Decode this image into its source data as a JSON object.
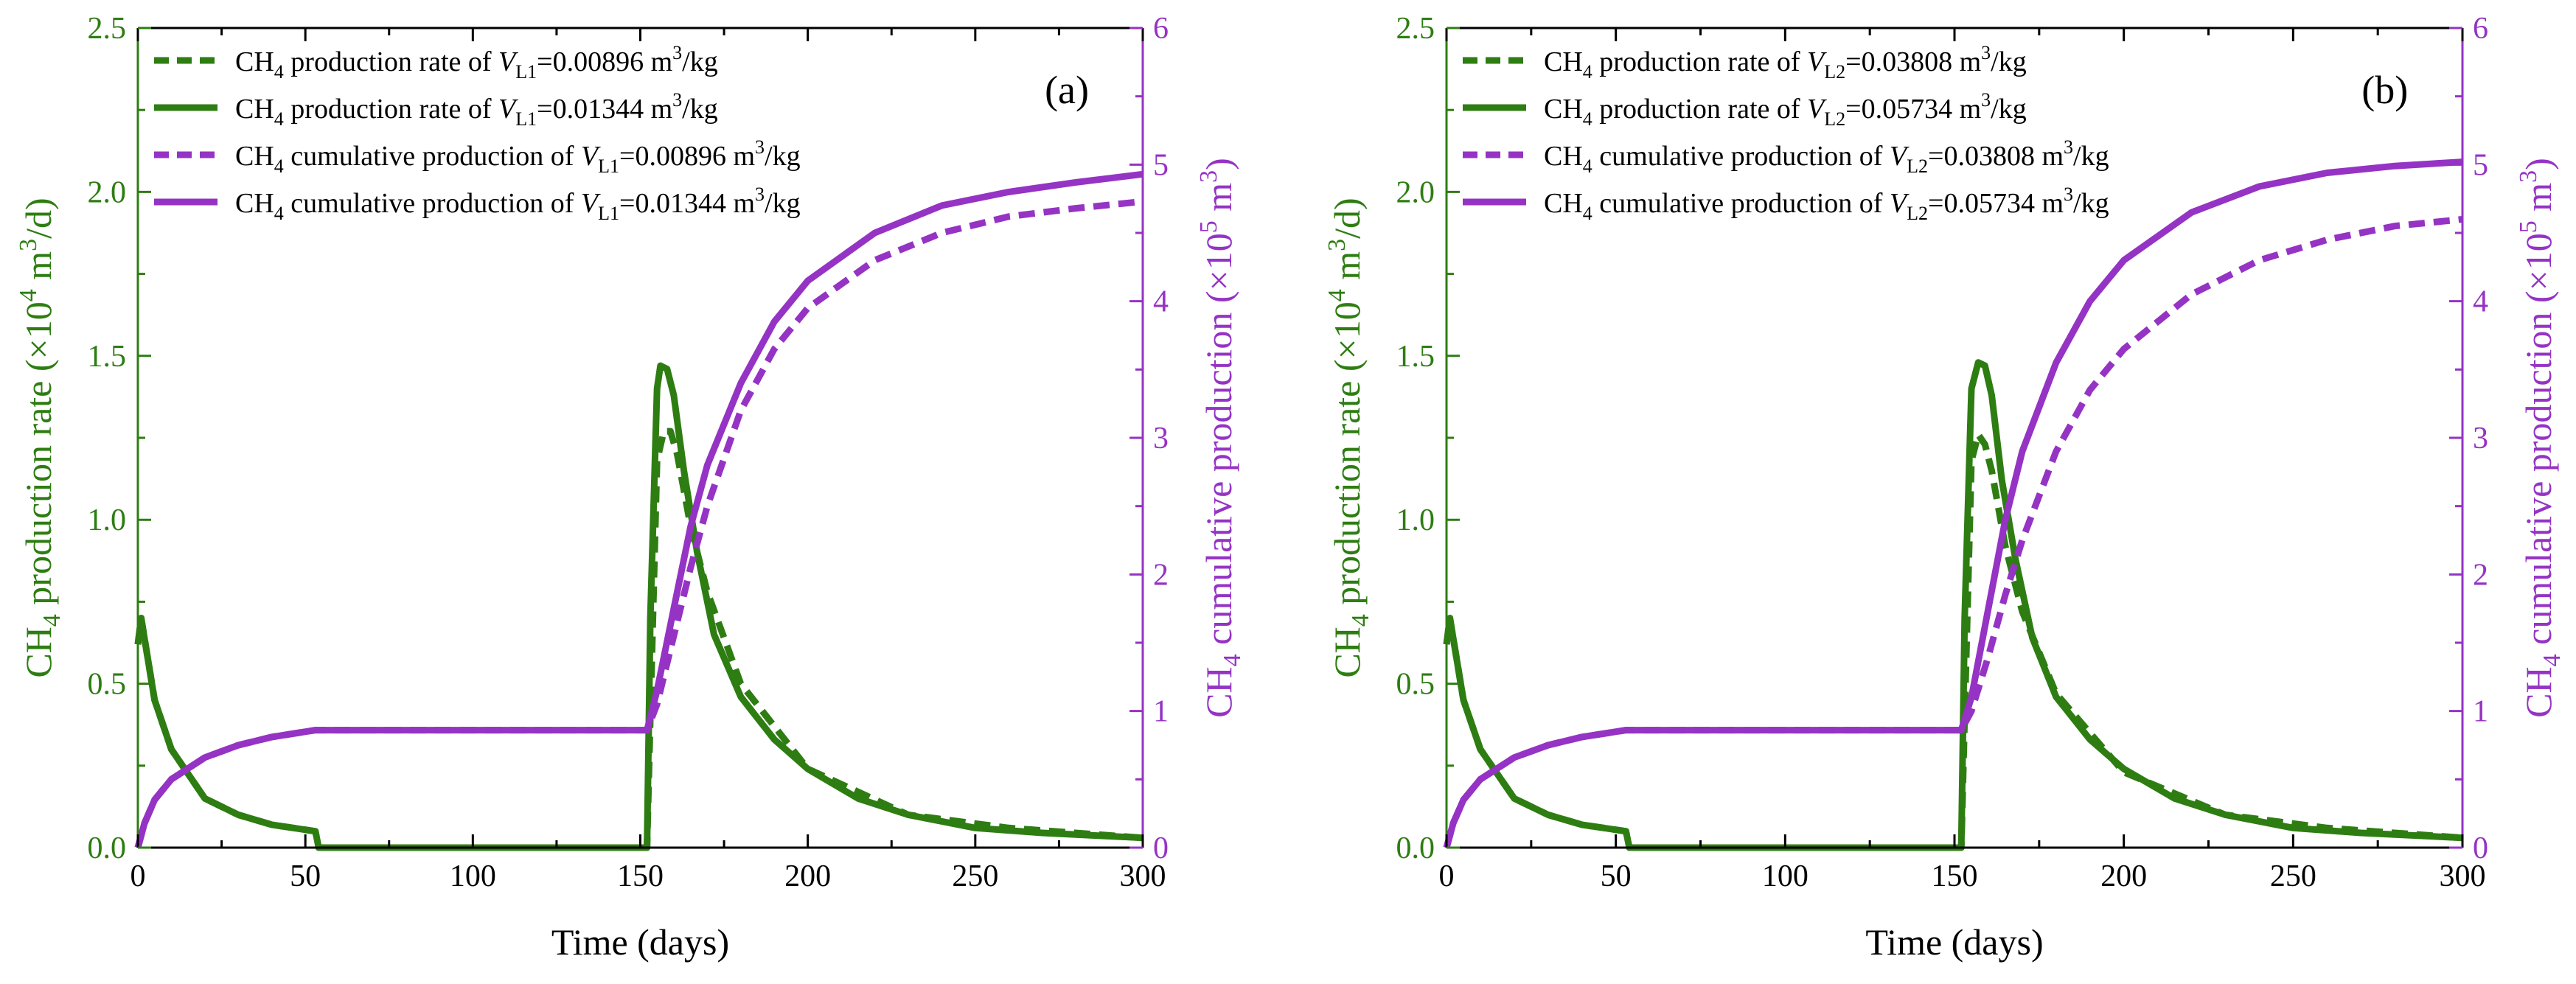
{
  "colors": {
    "rate": "#2e7d12",
    "cum": "#9533c4",
    "axis": "#000000"
  },
  "chart_data": [
    {
      "type": "line",
      "panel_label": "(a)",
      "xlabel": "Time (days)",
      "ylabel_left": {
        "pre": "CH",
        "sub": "4",
        "mid": " production rate (×10",
        "sup": "4",
        "mid2": " m",
        "sup2": "3",
        "post": "/d)"
      },
      "ylabel_right": {
        "pre": "CH",
        "sub": "4",
        "mid": " cumulative production (×10",
        "sup": "5",
        "mid2": " m",
        "sup2": "3",
        "post": ")"
      },
      "xlim": [
        0,
        300
      ],
      "ylim_left": [
        0,
        2.5
      ],
      "ylim_right": [
        0,
        6
      ],
      "xticks": [
        "0",
        "50",
        "100",
        "150",
        "200",
        "250",
        "300"
      ],
      "yticks_left": [
        "0.0",
        "0.5",
        "1.0",
        "1.5",
        "2.0",
        "2.5"
      ],
      "yticks_right": [
        "0",
        "1",
        "2",
        "3",
        "4",
        "5",
        "6"
      ],
      "legend": [
        {
          "pre": "CH",
          "sub": "4",
          "text": " production rate of ",
          "var": "V",
          "varsub": "L1",
          "val": "=0.00896 m",
          "sup": "3",
          "unit": "/kg",
          "style": "dashed",
          "color": "rate"
        },
        {
          "pre": "CH",
          "sub": "4",
          "text": " production rate of ",
          "var": "V",
          "varsub": "L1",
          "val": "=0.01344 m",
          "sup": "3",
          "unit": "/kg",
          "style": "solid",
          "color": "rate"
        },
        {
          "pre": "CH",
          "sub": "4",
          "text": " cumulative production of ",
          "var": "V",
          "varsub": "L1",
          "val": "=0.00896 m",
          "sup": "3",
          "unit": "/kg",
          "style": "dashed",
          "color": "cum"
        },
        {
          "pre": "CH",
          "sub": "4",
          "text": " cumulative production of ",
          "var": "V",
          "varsub": "L1",
          "val": "=0.01344 m",
          "sup": "3",
          "unit": "/kg",
          "style": "solid",
          "color": "cum"
        }
      ],
      "series": [
        {
          "name": "CH4 production rate of VL1=0.00896 m3/kg",
          "axis": "left",
          "style": "dashed",
          "color": "rate",
          "x": [
            0,
            1,
            5,
            10,
            20,
            30,
            40,
            53,
            54,
            55,
            150,
            152,
            153,
            155,
            157,
            159,
            161,
            165,
            170,
            180,
            200,
            230,
            260,
            300
          ],
          "y": [
            0.62,
            0.7,
            0.45,
            0.3,
            0.15,
            0.1,
            0.07,
            0.05,
            0.0,
            0.0,
            0.0,
            0.0,
            0.4,
            1.18,
            1.27,
            1.27,
            1.2,
            0.98,
            0.78,
            0.5,
            0.24,
            0.1,
            0.06,
            0.03
          ]
        },
        {
          "name": "CH4 production rate of VL1=0.01344 m3/kg",
          "axis": "left",
          "style": "solid",
          "color": "rate",
          "x": [
            0,
            1,
            5,
            10,
            20,
            30,
            40,
            53,
            54,
            55,
            150,
            152,
            153,
            155,
            156,
            158,
            160,
            163,
            167,
            172,
            180,
            190,
            200,
            215,
            230,
            250,
            270,
            300
          ],
          "y": [
            0.62,
            0.7,
            0.45,
            0.3,
            0.15,
            0.1,
            0.07,
            0.05,
            0.0,
            0.0,
            0.0,
            0.0,
            0.7,
            1.4,
            1.47,
            1.46,
            1.38,
            1.15,
            0.9,
            0.65,
            0.46,
            0.33,
            0.24,
            0.15,
            0.1,
            0.06,
            0.045,
            0.03
          ]
        },
        {
          "name": "CH4 cumulative production of VL1=0.00896 m3/kg",
          "axis": "right",
          "style": "dashed",
          "color": "cum",
          "x": [
            0,
            2,
            5,
            10,
            20,
            30,
            40,
            53,
            152,
            155,
            160,
            165,
            170,
            180,
            190,
            200,
            220,
            240,
            260,
            280,
            300
          ],
          "y": [
            0,
            0.18,
            0.35,
            0.5,
            0.66,
            0.75,
            0.81,
            0.86,
            0.86,
            1.05,
            1.55,
            2.05,
            2.5,
            3.2,
            3.65,
            3.95,
            4.3,
            4.5,
            4.62,
            4.68,
            4.73
          ]
        },
        {
          "name": "CH4 cumulative production of VL1=0.01344 m3/kg",
          "axis": "right",
          "style": "solid",
          "color": "cum",
          "x": [
            0,
            2,
            5,
            10,
            20,
            30,
            40,
            53,
            152,
            155,
            160,
            165,
            170,
            180,
            190,
            200,
            220,
            240,
            260,
            280,
            300
          ],
          "y": [
            0,
            0.18,
            0.35,
            0.5,
            0.66,
            0.75,
            0.81,
            0.86,
            0.86,
            1.15,
            1.75,
            2.35,
            2.8,
            3.4,
            3.85,
            4.15,
            4.5,
            4.7,
            4.8,
            4.87,
            4.93
          ]
        }
      ]
    },
    {
      "type": "line",
      "panel_label": "(b)",
      "xlabel": "Time (days)",
      "ylabel_left": {
        "pre": "CH",
        "sub": "4",
        "mid": " production rate (×10",
        "sup": "4",
        "mid2": " m",
        "sup2": "3",
        "post": "/d)"
      },
      "ylabel_right": {
        "pre": "CH",
        "sub": "4",
        "mid": " cumulative production (×10",
        "sup": "5",
        "mid2": " m",
        "sup2": "3",
        "post": ")"
      },
      "xlim": [
        0,
        300
      ],
      "ylim_left": [
        0,
        2.5
      ],
      "ylim_right": [
        0,
        6
      ],
      "xticks": [
        "0",
        "50",
        "100",
        "150",
        "200",
        "250",
        "300"
      ],
      "yticks_left": [
        "0.0",
        "0.5",
        "1.0",
        "1.5",
        "2.0",
        "2.5"
      ],
      "yticks_right": [
        "0",
        "1",
        "2",
        "3",
        "4",
        "5",
        "6"
      ],
      "legend": [
        {
          "pre": "CH",
          "sub": "4",
          "text": " production rate of ",
          "var": "V",
          "varsub": "L2",
          "val": "=0.03808 m",
          "sup": "3",
          "unit": "/kg",
          "style": "dashed",
          "color": "rate"
        },
        {
          "pre": "CH",
          "sub": "4",
          "text": " production rate of ",
          "var": "V",
          "varsub": "L2",
          "val": "=0.05734 m",
          "sup": "3",
          "unit": "/kg",
          "style": "solid",
          "color": "rate"
        },
        {
          "pre": "CH",
          "sub": "4",
          "text": " cumulative production of ",
          "var": "V",
          "varsub": "L2",
          "val": "=0.03808 m",
          "sup": "3",
          "unit": "/kg",
          "style": "dashed",
          "color": "cum"
        },
        {
          "pre": "CH",
          "sub": "4",
          "text": " cumulative production of ",
          "var": "V",
          "varsub": "L2",
          "val": "=0.05734 m",
          "sup": "3",
          "unit": "/kg",
          "style": "solid",
          "color": "cum"
        }
      ],
      "series": [
        {
          "name": "CH4 production rate of VL2=0.03808 m3/kg",
          "axis": "left",
          "style": "dashed",
          "color": "rate",
          "x": [
            0,
            1,
            5,
            10,
            20,
            30,
            40,
            53,
            54,
            55,
            150,
            152,
            153,
            155,
            157,
            159,
            161,
            165,
            170,
            180,
            200,
            230,
            260,
            300
          ],
          "y": [
            0.62,
            0.7,
            0.45,
            0.3,
            0.15,
            0.1,
            0.07,
            0.05,
            0.0,
            0.0,
            0.0,
            0.0,
            0.4,
            1.18,
            1.26,
            1.23,
            1.15,
            0.92,
            0.72,
            0.47,
            0.23,
            0.1,
            0.06,
            0.03
          ]
        },
        {
          "name": "CH4 production rate of VL2=0.05734 m3/kg",
          "axis": "left",
          "style": "solid",
          "color": "rate",
          "x": [
            0,
            1,
            5,
            10,
            20,
            30,
            40,
            53,
            54,
            55,
            150,
            152,
            153,
            155,
            157,
            159,
            161,
            164,
            168,
            173,
            180,
            190,
            200,
            215,
            230,
            250,
            270,
            300
          ],
          "y": [
            0.62,
            0.7,
            0.45,
            0.3,
            0.15,
            0.1,
            0.07,
            0.05,
            0.0,
            0.0,
            0.0,
            0.0,
            0.7,
            1.4,
            1.48,
            1.47,
            1.38,
            1.12,
            0.88,
            0.64,
            0.46,
            0.33,
            0.24,
            0.15,
            0.1,
            0.06,
            0.045,
            0.03
          ]
        },
        {
          "name": "CH4 cumulative production of VL2=0.03808 m3/kg",
          "axis": "right",
          "style": "dashed",
          "color": "cum",
          "x": [
            0,
            2,
            5,
            10,
            20,
            30,
            40,
            53,
            152,
            155,
            160,
            165,
            170,
            180,
            190,
            200,
            220,
            240,
            260,
            280,
            300
          ],
          "y": [
            0,
            0.18,
            0.35,
            0.5,
            0.66,
            0.75,
            0.81,
            0.86,
            0.86,
            1.0,
            1.4,
            1.85,
            2.25,
            2.9,
            3.35,
            3.65,
            4.05,
            4.3,
            4.45,
            4.55,
            4.6
          ]
        },
        {
          "name": "CH4 cumulative production of VL2=0.05734 m3/kg",
          "axis": "right",
          "style": "solid",
          "color": "cum",
          "x": [
            0,
            2,
            5,
            10,
            20,
            30,
            40,
            53,
            152,
            155,
            160,
            165,
            170,
            180,
            190,
            200,
            220,
            240,
            260,
            280,
            300
          ],
          "y": [
            0,
            0.18,
            0.35,
            0.5,
            0.66,
            0.75,
            0.81,
            0.86,
            0.86,
            1.1,
            1.75,
            2.4,
            2.9,
            3.55,
            4.0,
            4.3,
            4.65,
            4.84,
            4.94,
            4.99,
            5.02
          ]
        }
      ]
    }
  ]
}
